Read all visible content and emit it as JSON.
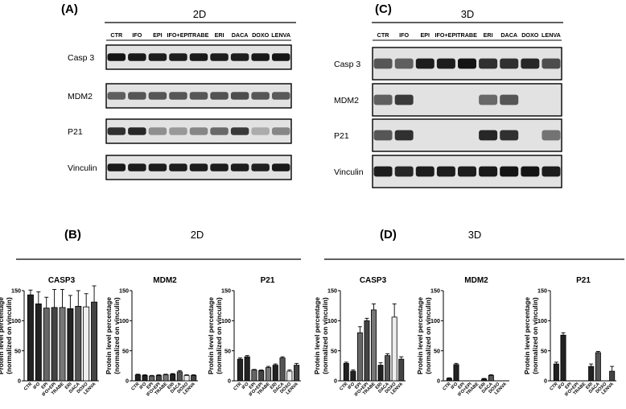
{
  "figure": {
    "panel_a": {
      "letter": "(A)",
      "condition": "2D",
      "lanes": [
        "CTR",
        "IFO",
        "EPI",
        "IFO+EPI",
        "TRABE",
        "ERI",
        "DACA",
        "DOXO",
        "LENVA"
      ],
      "proteins": [
        "Casp 3",
        "MDM2",
        "P21",
        "Vinculin"
      ],
      "intensity": {
        "Casp 3": [
          0.95,
          0.92,
          0.9,
          0.9,
          0.92,
          0.9,
          0.9,
          0.92,
          0.95
        ],
        "MDM2": [
          0.55,
          0.6,
          0.6,
          0.6,
          0.6,
          0.62,
          0.65,
          0.6,
          0.58
        ],
        "P21": [
          0.8,
          0.85,
          0.3,
          0.25,
          0.35,
          0.5,
          0.75,
          0.15,
          0.35
        ],
        "Vinculin": [
          0.92,
          0.9,
          0.9,
          0.9,
          0.9,
          0.9,
          0.9,
          0.88,
          0.92
        ]
      }
    },
    "panel_c": {
      "letter": "(C)",
      "condition": "3D",
      "lanes": [
        "CTR",
        "IFO",
        "EPI",
        "IFO+EPI",
        "TRABE",
        "ERI",
        "DACA",
        "DOXO",
        "LENVA"
      ],
      "proteins": [
        "Casp 3",
        "MDM2",
        "P21",
        "Vinculin"
      ],
      "intensity": {
        "Casp 3": [
          0.6,
          0.55,
          0.9,
          0.9,
          0.95,
          0.8,
          0.8,
          0.85,
          0.65
        ],
        "MDM2": [
          0.55,
          0.75,
          0.05,
          0.05,
          0.05,
          0.5,
          0.6,
          0.05,
          0.05
        ],
        "P21": [
          0.6,
          0.8,
          0.05,
          0.05,
          0.05,
          0.85,
          0.8,
          0.05,
          0.45
        ],
        "Vinculin": [
          0.9,
          0.85,
          0.9,
          0.9,
          0.9,
          0.92,
          0.95,
          0.95,
          0.9
        ]
      }
    },
    "panel_b": {
      "letter": "(B)",
      "condition": "2D"
    },
    "panel_d": {
      "letter": "(D)",
      "condition": "3D"
    }
  },
  "chart_data": [
    {
      "type": "bar",
      "panel": "B",
      "title": "CASP3",
      "ylabel": "Protein level percentage (normalized on vinculin)",
      "categories": [
        "CTR",
        "IFO",
        "EPI",
        "IFO+EPI",
        "TRABE",
        "ERI",
        "DACA",
        "DOXO",
        "LENVA"
      ],
      "values": [
        143,
        128,
        121,
        122,
        122,
        120,
        124,
        123,
        131
      ],
      "errors": [
        8,
        20,
        18,
        30,
        30,
        22,
        26,
        22,
        27
      ],
      "ylim": [
        0,
        150
      ],
      "yticks": [
        0,
        50,
        100,
        150
      ]
    },
    {
      "type": "bar",
      "panel": "B",
      "title": "MDM2",
      "ylabel": "Protein level percentage (normalized on vinculin)",
      "categories": [
        "CTR",
        "IFO",
        "EPI",
        "IFO+EPI",
        "TRABE",
        "ERI",
        "DACA",
        "DOXO",
        "LENVA"
      ],
      "values": [
        10,
        9,
        8,
        9,
        10,
        11,
        15,
        9,
        9
      ],
      "errors": [
        1,
        1,
        1,
        1,
        1,
        1,
        2,
        1,
        1
      ],
      "ylim": [
        0,
        150
      ],
      "yticks": [
        0,
        50,
        100,
        150
      ]
    },
    {
      "type": "bar",
      "panel": "B",
      "title": "P21",
      "ylabel": "Protein level percentage (normalized on vinculin)",
      "categories": [
        "CTR",
        "IFO",
        "EPI",
        "IFO+EPI",
        "TRABE",
        "ERI",
        "DACA",
        "DOXO",
        "LENVA"
      ],
      "values": [
        36,
        40,
        18,
        17,
        22,
        26,
        38,
        16,
        26
      ],
      "errors": [
        2,
        2,
        1,
        1,
        2,
        2,
        2,
        2,
        3
      ],
      "ylim": [
        0,
        150
      ],
      "yticks": [
        0,
        50,
        100,
        150
      ]
    },
    {
      "type": "bar",
      "panel": "D",
      "title": "CASP3",
      "ylabel": "Protein level percentage (normalized on vinculin)",
      "categories": [
        "CTR",
        "IFO",
        "EPI",
        "IFO+EPI",
        "TRABE",
        "ERI",
        "DACA",
        "DOXO",
        "LENVA"
      ],
      "values": [
        29,
        16,
        80,
        100,
        118,
        26,
        42,
        106,
        36
      ],
      "errors": [
        2,
        2,
        10,
        4,
        10,
        4,
        3,
        22,
        4
      ],
      "ylim": [
        0,
        150
      ],
      "yticks": [
        0,
        50,
        100,
        150
      ]
    },
    {
      "type": "bar",
      "panel": "D",
      "title": "MDM2",
      "ylabel": "Protein level percentage (normalized on vinculin)",
      "categories": [
        "CTR",
        "IFO",
        "EPI",
        "IFO+EPI",
        "TRABE",
        "ERI",
        "DACA",
        "DOXO",
        "LENVA"
      ],
      "values": [
        4,
        27,
        0,
        0,
        0,
        3,
        9,
        0,
        0
      ],
      "errors": [
        1,
        2,
        0,
        0,
        0,
        1,
        1,
        0,
        0
      ],
      "ylim": [
        0,
        150
      ],
      "yticks": [
        0,
        50,
        100,
        150
      ]
    },
    {
      "type": "bar",
      "panel": "D",
      "title": "P21",
      "ylabel": "Protein level percentage (normalized on vinculin)",
      "categories": [
        "CTR",
        "IFO",
        "EPI",
        "IFO+EPI",
        "TRABE",
        "ERI",
        "DACA",
        "DOXO",
        "LENVA"
      ],
      "values": [
        28,
        76,
        0,
        0,
        0,
        24,
        47,
        0,
        16
      ],
      "errors": [
        3,
        4,
        0,
        0,
        0,
        4,
        2,
        0,
        8
      ],
      "ylim": [
        0,
        150
      ],
      "yticks": [
        0,
        50,
        100,
        150
      ]
    }
  ]
}
